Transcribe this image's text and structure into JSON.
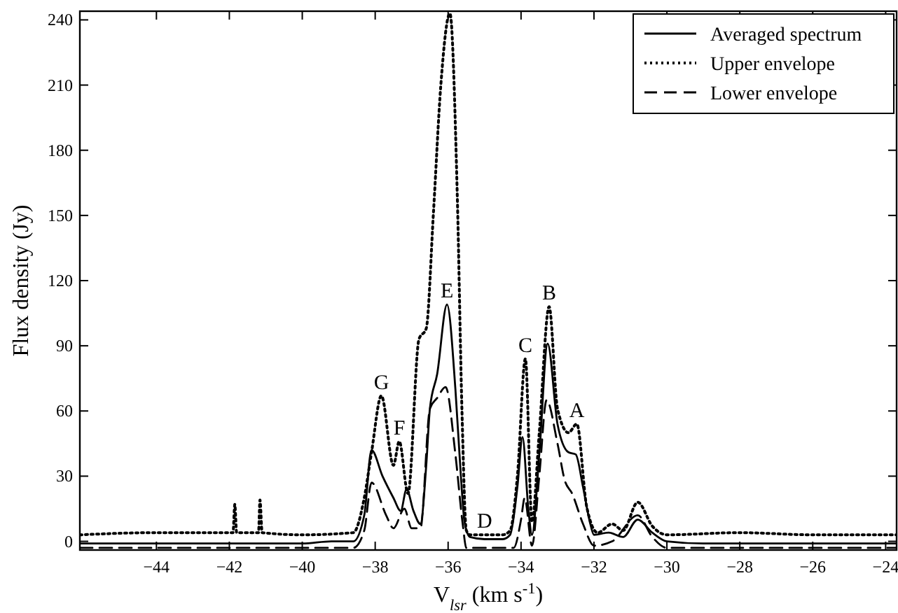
{
  "chart_data": {
    "type": "line",
    "xlabel": "V$_{lsr}$ (km s$^{-1}$)",
    "ylabel": "Flux density (Jy)",
    "xlim": [
      -46.1,
      -23.7
    ],
    "ylim": [
      -4,
      244
    ],
    "xticks": [
      -44,
      -42,
      -40,
      -38,
      -36,
      -34,
      -32,
      -30,
      -28,
      -26,
      -24
    ],
    "yticks": [
      0,
      30,
      60,
      90,
      120,
      150,
      180,
      210,
      240
    ],
    "grid": false,
    "legend": "top right",
    "marker": "none",
    "series": [
      {
        "name": "Averaged spectrum",
        "color": "#000000",
        "line_style": "solid",
        "x": [
          -46.1,
          -44,
          -42,
          -40,
          -39.2,
          -38.6,
          -38.3,
          -38.1,
          -37.8,
          -37.5,
          -37.3,
          -37.14,
          -36.95,
          -36.76,
          -36.6,
          -36.5,
          -36.3,
          -36.03,
          -35.8,
          -35.65,
          -35.55,
          -35.4,
          -35,
          -34.5,
          -34.3,
          -34.1,
          -33.96,
          -33.8,
          -33.7,
          -33.5,
          -33.27,
          -33,
          -32.7,
          -32.5,
          -32.3,
          -32.1,
          -32,
          -31.6,
          -31.2,
          -30.8,
          -30.4,
          -30,
          -29,
          -27,
          -25,
          -23.7
        ],
        "values": [
          -1,
          -1,
          -1,
          -1,
          0,
          0,
          12,
          42,
          30,
          20,
          14,
          24,
          14,
          8,
          35,
          61,
          77,
          109,
          70,
          30,
          9,
          2,
          1,
          1,
          3,
          25,
          48,
          15,
          3,
          40,
          91,
          54,
          41,
          40,
          25,
          8,
          3,
          4,
          2,
          10,
          4,
          0,
          -1,
          -1,
          -1,
          -1
        ]
      },
      {
        "name": "Upper envelope",
        "color": "#000000",
        "line_style": "dotted",
        "x": [
          -46.1,
          -44,
          -42.2,
          -41.9,
          -41.85,
          -41.8,
          -41.5,
          -41.2,
          -41.16,
          -41.1,
          -40,
          -38.6,
          -38.3,
          -38.1,
          -37.83,
          -37.5,
          -37.34,
          -37.1,
          -36.8,
          -36.6,
          -36.4,
          -36.2,
          -35.95,
          -35.75,
          -35.62,
          -35.5,
          -35.4,
          -35,
          -34.5,
          -34.3,
          -34.1,
          -33.88,
          -33.7,
          -33.5,
          -33.23,
          -33,
          -32.7,
          -32.47,
          -32.2,
          -31.9,
          -31.5,
          -31.2,
          -30.8,
          -30.4,
          -30,
          -28,
          -26,
          -23.7
        ],
        "values": [
          3,
          4,
          4,
          4,
          17,
          4,
          4,
          4,
          19,
          4,
          3,
          4,
          20,
          41,
          67,
          35,
          46,
          22,
          93,
          98,
          152,
          210,
          243,
          160,
          60,
          5,
          3,
          3,
          3,
          5,
          30,
          84,
          9,
          50,
          108,
          61,
          50,
          54,
          16,
          4,
          8,
          5,
          18,
          7,
          3,
          4,
          3,
          3
        ]
      },
      {
        "name": "Lower envelope",
        "color": "#000000",
        "line_style": "dashed",
        "x": [
          -46.1,
          -44,
          -42,
          -40,
          -38.6,
          -38.3,
          -38.1,
          -37.7,
          -37.5,
          -37.2,
          -37,
          -36.76,
          -36.5,
          -36.3,
          -36.07,
          -35.8,
          -35.6,
          -35.5,
          -35,
          -34.5,
          -34.2,
          -34.0,
          -33.9,
          -33.7,
          -33.5,
          -33.3,
          -33,
          -32.8,
          -32.6,
          -32.3,
          -32.0,
          -31.5,
          -30.8,
          -30.4,
          -30,
          -28,
          -25,
          -23.7
        ],
        "values": [
          -3,
          -3,
          -3,
          -3,
          -3,
          5,
          27,
          12,
          6,
          15,
          6,
          6,
          61,
          66,
          71,
          40,
          8,
          -3,
          -3,
          -3,
          -3,
          10,
          20,
          -2,
          30,
          65,
          45,
          28,
          22,
          8,
          -2,
          0,
          12,
          2,
          -3,
          -3,
          -3,
          -3
        ]
      }
    ],
    "annotations": [
      {
        "text": "G",
        "x": -37.83,
        "y": 67
      },
      {
        "text": "F",
        "x": -37.34,
        "y": 46
      },
      {
        "text": "E",
        "x": -36.03,
        "y": 109
      },
      {
        "text": "D",
        "x": -35,
        "y": 3
      },
      {
        "text": "C",
        "x": -33.88,
        "y": 84
      },
      {
        "text": "B",
        "x": -33.23,
        "y": 108
      },
      {
        "text": "A",
        "x": -32.47,
        "y": 54
      }
    ]
  }
}
